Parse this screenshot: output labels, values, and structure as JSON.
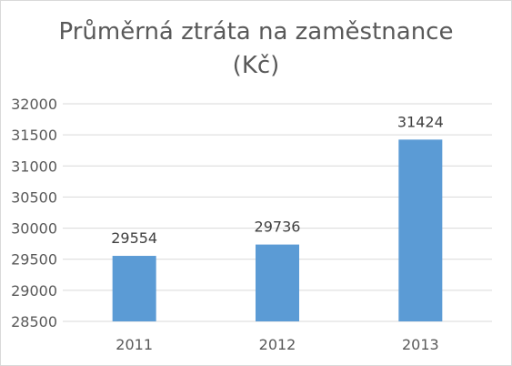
{
  "chart_data": {
    "type": "bar",
    "title_lines": [
      "Průměrná ztráta na zaměstnance",
      "(Kč)"
    ],
    "categories": [
      "2011",
      "2012",
      "2013"
    ],
    "values": [
      29554,
      29736,
      31424
    ],
    "data_labels": [
      "29554",
      "29736",
      "31424"
    ],
    "y_ticks": [
      "28500",
      "29000",
      "29500",
      "30000",
      "30500",
      "31000",
      "31500",
      "32000"
    ],
    "ylim": [
      28500,
      32000
    ],
    "grid": true,
    "legend": "none",
    "colors": {
      "bar": "#5B9BD5",
      "grid": "#d9d9d9",
      "text": "#595959"
    }
  }
}
